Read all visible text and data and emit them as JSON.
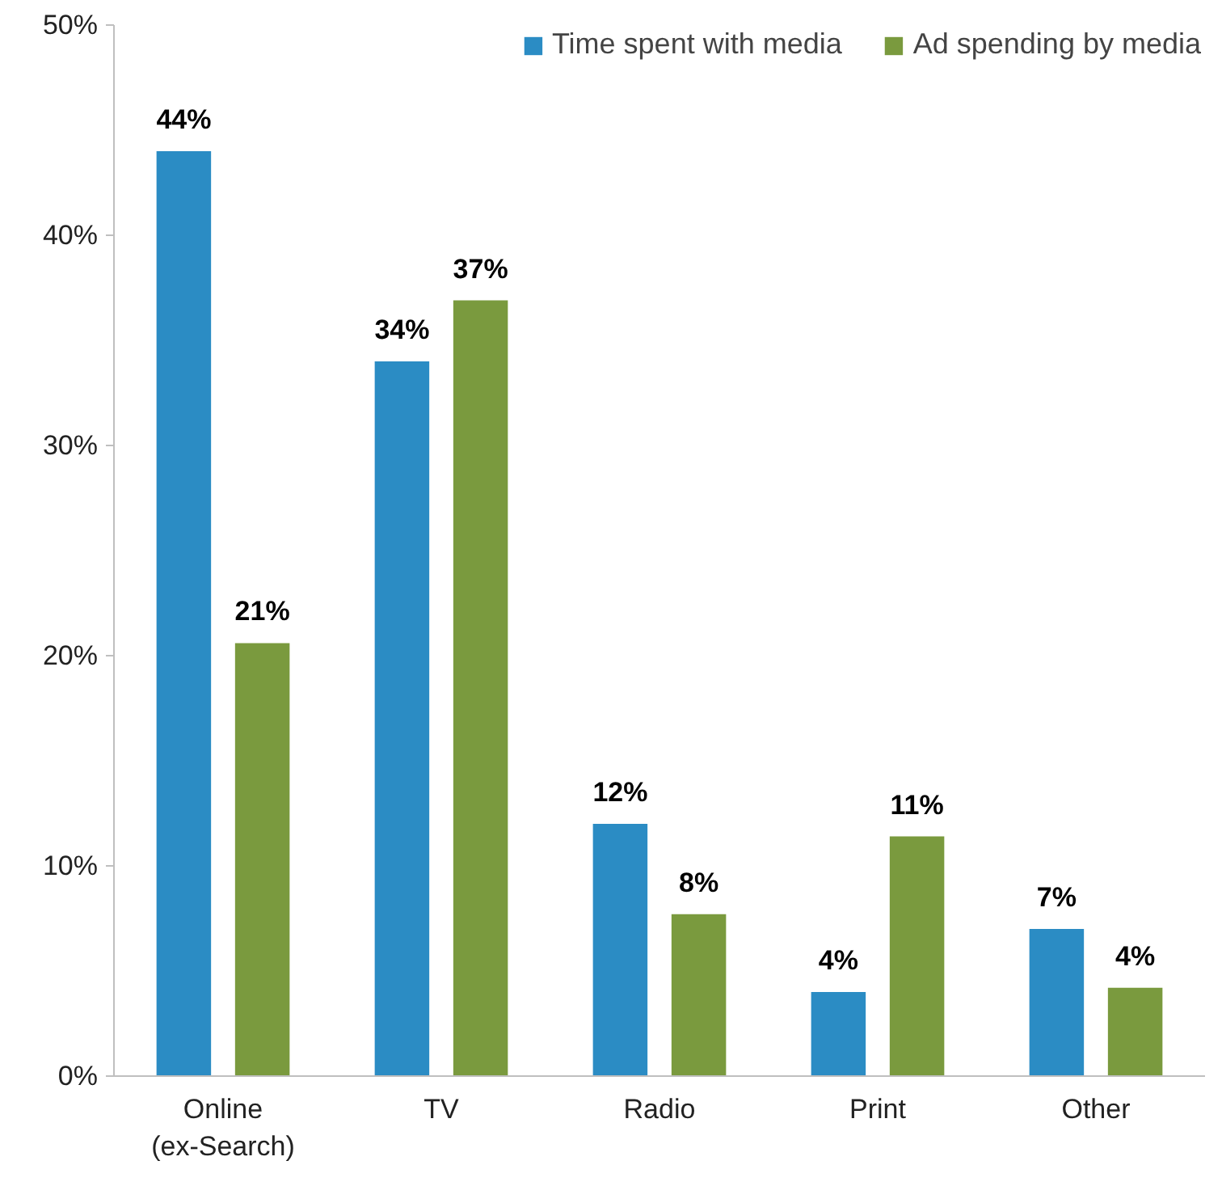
{
  "chart_data": {
    "type": "bar",
    "categories": [
      "Online\n(ex-Search)",
      "TV",
      "Radio",
      "Print",
      "Other"
    ],
    "series": [
      {
        "name": "Time spent with media",
        "color": "#2b8cc4",
        "values": [
          44.0,
          34.0,
          12.0,
          4.0,
          7.0
        ],
        "value_labels": [
          "44%",
          "34%",
          "12%",
          "4%",
          "7%"
        ]
      },
      {
        "name": "Ad spending by media",
        "color": "#7a9a3e",
        "values": [
          20.6,
          36.9,
          7.7,
          11.4,
          4.2
        ],
        "value_labels": [
          "21%",
          "37%",
          "8%",
          "11%",
          "4%"
        ]
      }
    ],
    "ylim": [
      0,
      50
    ],
    "yticks": [
      {
        "value": 0,
        "label": "0%"
      },
      {
        "value": 10,
        "label": "10%"
      },
      {
        "value": 20,
        "label": "20%"
      },
      {
        "value": 30,
        "label": "30%"
      },
      {
        "value": 40,
        "label": "40%"
      },
      {
        "value": 50,
        "label": "50%"
      }
    ],
    "grid": false,
    "legend": "top right"
  }
}
